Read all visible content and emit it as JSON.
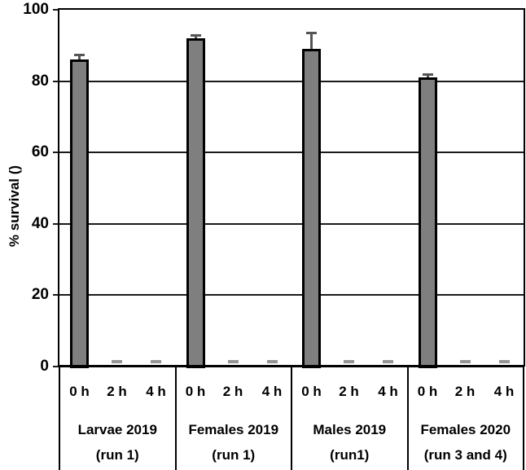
{
  "chart_data": {
    "type": "bar",
    "title": "",
    "ylabel": "% survival ()",
    "xlabel": "",
    "ylim": [
      0,
      100
    ],
    "yticks": [
      0,
      20,
      40,
      60,
      80,
      100
    ],
    "grid": "horizontal",
    "legend": "none",
    "categories": [
      "0 h",
      "2 h",
      "4 h"
    ],
    "groups": [
      {
        "label": "Larvae 2019",
        "run": "(run 1)",
        "values": [
          86,
          0,
          0
        ],
        "errors": [
          1.5,
          0,
          0
        ]
      },
      {
        "label": "Females 2019",
        "run": "(run 1)",
        "values": [
          92,
          0,
          0
        ],
        "errors": [
          1.0,
          0,
          0
        ]
      },
      {
        "label": "Males 2019",
        "run": "(run1)",
        "values": [
          89,
          0,
          0
        ],
        "errors": [
          4.5,
          0,
          0
        ]
      },
      {
        "label": "Females 2020",
        "run": "(run 3 and 4)",
        "values": [
          81,
          0,
          0
        ],
        "errors": [
          1.0,
          0,
          0
        ]
      }
    ],
    "colors": {
      "bar_fill": "#7f7f7f",
      "bar_border": "#000000",
      "error_bar": "#555555",
      "axis": "#000000",
      "zero_bar_mark": "#949494",
      "background": "#ffffff",
      "text": "#000000"
    }
  }
}
